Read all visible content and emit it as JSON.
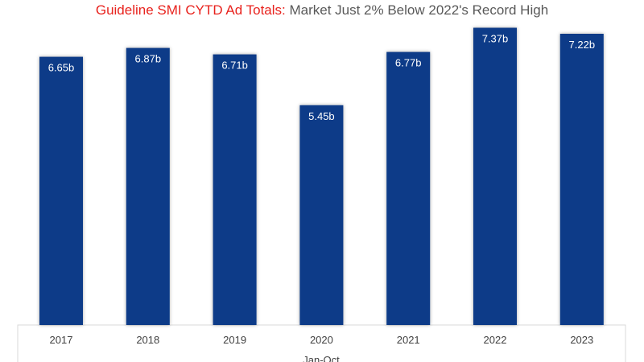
{
  "chart_data": {
    "type": "bar",
    "title_lead": "Guideline SMI CYTD Ad Totals:",
    "title_rest": " Market Just 2% Below 2022's Record High",
    "categories": [
      "2017",
      "2018",
      "2019",
      "2020",
      "2021",
      "2022",
      "2023"
    ],
    "values": [
      6.65,
      6.87,
      6.71,
      5.45,
      6.77,
      7.37,
      7.22
    ],
    "data_labels": [
      "6.65b",
      "6.87b",
      "6.71b",
      "5.45b",
      "6.77b",
      "7.37b",
      "7.22b"
    ],
    "xlabel": "Jan-Oct",
    "ylabel": "",
    "ylim": [
      0,
      7.5
    ],
    "grid": false,
    "legend": "none",
    "bar_color": "#0a3a88",
    "title_lead_color": "#e8221d",
    "title_rest_color": "#595959"
  }
}
